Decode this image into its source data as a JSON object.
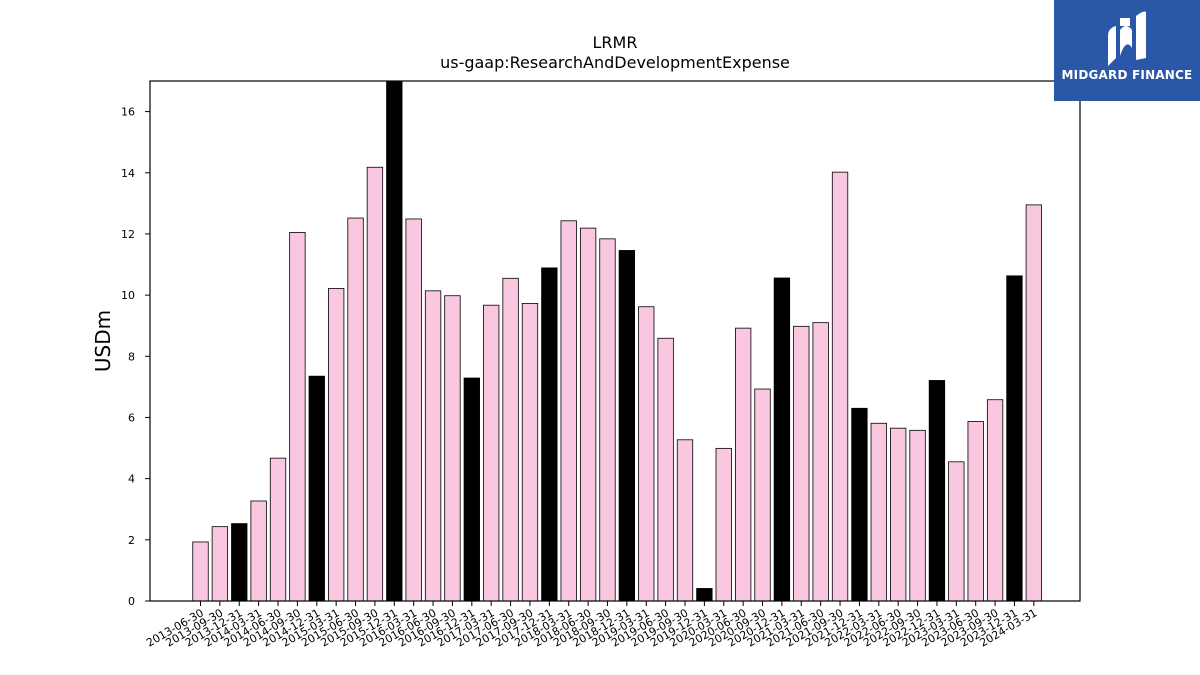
{
  "chart_data": {
    "type": "bar",
    "title": "LRMR",
    "subtitle": "us-gaap:ResearchAndDevelopmentExpense",
    "ylabel": "USDm",
    "xlabel": "",
    "ylim": [
      0,
      17
    ],
    "yticks": [
      0,
      2,
      4,
      6,
      8,
      10,
      12,
      14,
      16
    ],
    "grid": false,
    "colors": {
      "quarter": "#f9c8e0",
      "annual": "#000000",
      "edge": "#000000"
    },
    "categories": [
      "2013-06-30",
      "2013-09-30",
      "2013-12-31",
      "2014-03-31",
      "2014-06-30",
      "2014-09-30",
      "2014-12-31",
      "2015-03-31",
      "2015-06-30",
      "2015-09-30",
      "2015-12-31",
      "2016-03-31",
      "2016-06-30",
      "2016-09-30",
      "2016-12-31",
      "2017-03-31",
      "2017-06-30",
      "2017-09-30",
      "2017-12-31",
      "2018-03-31",
      "2018-06-30",
      "2018-09-30",
      "2018-12-31",
      "2019-03-31",
      "2019-06-30",
      "2019-09-30",
      "2019-12-31",
      "2020-03-31",
      "2020-06-30",
      "2020-09-30",
      "2020-12-31",
      "2021-03-31",
      "2021-06-30",
      "2021-09-30",
      "2021-12-31",
      "2022-03-31",
      "2022-06-30",
      "2022-09-30",
      "2022-12-31",
      "2023-03-31",
      "2023-06-30",
      "2023-09-30",
      "2023-12-31",
      "2024-03-31"
    ],
    "values": [
      1.93,
      2.43,
      2.53,
      3.27,
      4.67,
      12.05,
      7.35,
      10.22,
      12.52,
      14.18,
      16.97,
      12.49,
      10.14,
      9.98,
      7.29,
      9.67,
      10.55,
      9.73,
      10.89,
      12.43,
      12.19,
      11.84,
      11.46,
      9.62,
      8.59,
      5.27,
      0.41,
      4.99,
      8.92,
      6.93,
      10.56,
      8.98,
      9.1,
      14.02,
      6.3,
      5.81,
      5.65,
      5.58,
      7.21,
      4.55,
      5.87,
      6.58,
      10.63,
      12.95
    ],
    "annual": [
      false,
      false,
      true,
      false,
      false,
      false,
      true,
      false,
      false,
      false,
      true,
      false,
      false,
      false,
      true,
      false,
      false,
      false,
      true,
      false,
      false,
      false,
      true,
      false,
      false,
      false,
      true,
      false,
      false,
      false,
      true,
      false,
      false,
      false,
      true,
      false,
      false,
      false,
      true,
      false,
      false,
      false,
      true,
      false
    ]
  },
  "logo": {
    "text": "MIDGARD FINANCE",
    "icon": "midgard-logo-icon"
  }
}
